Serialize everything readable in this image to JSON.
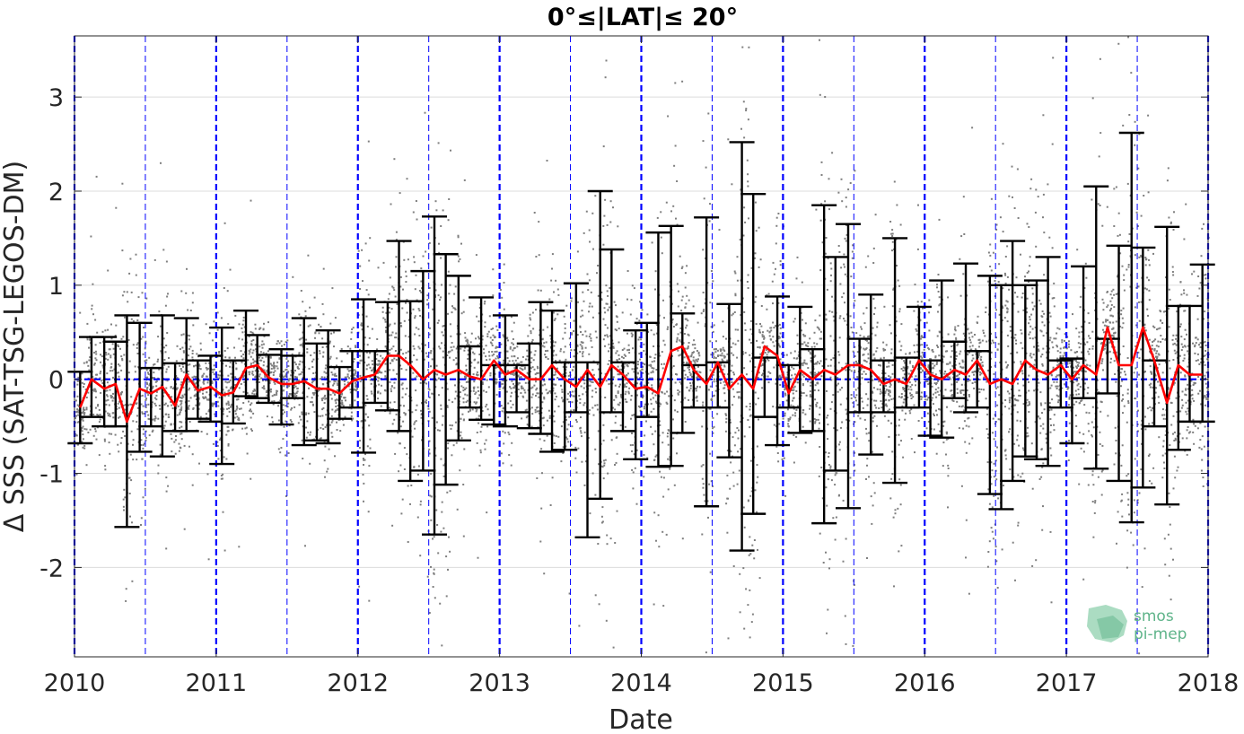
{
  "chart_data": {
    "type": "scatter",
    "title": "0°≤|LAT|≤ 20°",
    "xlabel": "Date",
    "ylabel": "Δ SSS (SAT-TSG-LEGOS-DM)",
    "xlim": [
      2010.0,
      2018.0
    ],
    "ylim": [
      -2.95,
      3.65
    ],
    "x_ticks": [
      2010,
      2011,
      2012,
      2013,
      2014,
      2015,
      2016,
      2017,
      2018
    ],
    "x_tick_labels": [
      "2010",
      "2011",
      "2012",
      "2013",
      "2014",
      "2015",
      "2016",
      "2017",
      "2018"
    ],
    "y_ticks": [
      -2,
      -1,
      0,
      1,
      2,
      3
    ],
    "y_tick_labels": [
      "-2",
      "-1",
      "0",
      "1",
      "2",
      "3"
    ],
    "grid": "horizontal",
    "year_lines": [
      2010,
      2011,
      2012,
      2013,
      2014,
      2015,
      2016,
      2017,
      2018
    ],
    "half_year_lines": [
      2010.5,
      2011.5,
      2012.5,
      2013.5,
      2014.5,
      2015.5,
      2016.5,
      2017.5
    ],
    "zero_line": 0,
    "colors": {
      "scatter": "#7f7f7f",
      "mean_line": "#ff0000",
      "error_bars": "#000000",
      "year_lines": "#0000ff",
      "zero_line": "#0000ff",
      "grid": "#dcdcdc"
    },
    "series": [
      {
        "type": "line",
        "x": [
          2010.04,
          2010.12,
          2010.21,
          2010.29,
          2010.37,
          2010.46,
          2010.54,
          2010.62,
          2010.71,
          2010.79,
          2010.87,
          2010.96,
          2011.04,
          2011.12,
          2011.21,
          2011.29,
          2011.37,
          2011.46,
          2011.54,
          2011.62,
          2011.71,
          2011.79,
          2011.87,
          2011.96,
          2012.04,
          2012.12,
          2012.21,
          2012.29,
          2012.37,
          2012.46,
          2012.54,
          2012.62,
          2012.71,
          2012.79,
          2012.87,
          2012.96,
          2013.04,
          2013.12,
          2013.21,
          2013.29,
          2013.37,
          2013.46,
          2013.54,
          2013.62,
          2013.71,
          2013.79,
          2013.87,
          2013.96,
          2014.04,
          2014.12,
          2014.21,
          2014.29,
          2014.37,
          2014.46,
          2014.54,
          2014.62,
          2014.71,
          2014.79,
          2014.87,
          2014.96,
          2015.04,
          2015.12,
          2015.21,
          2015.29,
          2015.37,
          2015.46,
          2015.54,
          2015.62,
          2015.71,
          2015.79,
          2015.87,
          2015.96,
          2016.04,
          2016.12,
          2016.21,
          2016.29,
          2016.37,
          2016.46,
          2016.54,
          2016.62,
          2016.71,
          2016.79,
          2016.87,
          2016.96,
          2017.04,
          2017.12,
          2017.21,
          2017.29,
          2017.37,
          2017.46,
          2017.54,
          2017.62,
          2017.71,
          2017.79,
          2017.87,
          2017.96
        ],
        "y": [
          -0.3,
          0.0,
          -0.1,
          -0.05,
          -0.45,
          -0.1,
          -0.15,
          -0.08,
          -0.28,
          0.05,
          -0.12,
          -0.08,
          -0.17,
          -0.14,
          0.12,
          0.15,
          0.02,
          -0.05,
          -0.05,
          -0.02,
          -0.1,
          -0.1,
          -0.15,
          -0.02,
          0.02,
          0.05,
          0.25,
          0.25,
          0.15,
          0.0,
          0.1,
          0.05,
          0.1,
          0.03,
          0.0,
          0.2,
          0.05,
          0.1,
          0.0,
          0.0,
          0.15,
          0.0,
          -0.08,
          0.1,
          -0.08,
          0.15,
          0.05,
          -0.1,
          -0.08,
          -0.15,
          0.3,
          0.35,
          0.1,
          -0.05,
          0.18,
          -0.1,
          0.05,
          -0.1,
          0.35,
          0.25,
          -0.15,
          0.1,
          0.0,
          0.1,
          0.05,
          0.15,
          0.15,
          0.1,
          -0.05,
          0.0,
          -0.05,
          0.2,
          0.05,
          0.0,
          0.1,
          0.05,
          0.2,
          -0.05,
          0.0,
          -0.05,
          0.2,
          0.1,
          0.05,
          0.15,
          0.0,
          0.15,
          0.05,
          0.55,
          0.15,
          0.15,
          0.55,
          0.2,
          -0.25,
          0.15,
          0.05,
          0.05
        ]
      },
      {
        "type": "errorbar",
        "x": [
          2010.04,
          2010.12,
          2010.21,
          2010.29,
          2010.37,
          2010.46,
          2010.54,
          2010.62,
          2010.71,
          2010.79,
          2010.87,
          2010.96,
          2011.04,
          2011.12,
          2011.21,
          2011.29,
          2011.37,
          2011.46,
          2011.54,
          2011.62,
          2011.71,
          2011.79,
          2011.87,
          2011.96,
          2012.04,
          2012.12,
          2012.21,
          2012.29,
          2012.37,
          2012.46,
          2012.54,
          2012.62,
          2012.71,
          2012.79,
          2012.87,
          2012.96,
          2013.04,
          2013.12,
          2013.21,
          2013.29,
          2013.37,
          2013.46,
          2013.54,
          2013.62,
          2013.71,
          2013.79,
          2013.87,
          2013.96,
          2014.04,
          2014.12,
          2014.21,
          2014.29,
          2014.37,
          2014.46,
          2014.54,
          2014.62,
          2014.71,
          2014.79,
          2014.87,
          2014.96,
          2015.04,
          2015.12,
          2015.21,
          2015.29,
          2015.37,
          2015.46,
          2015.54,
          2015.62,
          2015.71,
          2015.79,
          2015.87,
          2015.96,
          2016.04,
          2016.12,
          2016.21,
          2016.29,
          2016.37,
          2016.46,
          2016.54,
          2016.62,
          2016.71,
          2016.79,
          2016.87,
          2016.96,
          2017.04,
          2017.12,
          2017.21,
          2017.29,
          2017.37,
          2017.46,
          2017.54,
          2017.62,
          2017.71,
          2017.79,
          2017.87,
          2017.96
        ],
        "upper": [
          0.08,
          0.45,
          0.45,
          0.4,
          0.68,
          0.6,
          0.12,
          0.68,
          0.17,
          0.65,
          0.2,
          0.25,
          0.55,
          0.2,
          0.73,
          0.47,
          0.26,
          0.32,
          0.25,
          0.65,
          0.38,
          0.52,
          0.13,
          0.3,
          0.85,
          0.3,
          0.82,
          1.47,
          0.83,
          1.15,
          1.73,
          1.33,
          1.1,
          0.35,
          0.87,
          0.15,
          0.68,
          0.15,
          0.38,
          0.82,
          0.73,
          0.18,
          1.02,
          0.18,
          2.0,
          1.38,
          0.18,
          0.52,
          0.6,
          1.56,
          1.63,
          0.7,
          0.15,
          1.72,
          0.18,
          0.8,
          2.52,
          1.97,
          0.23,
          0.88,
          0.15,
          0.77,
          0.32,
          1.85,
          1.3,
          1.65,
          0.43,
          0.9,
          0.2,
          1.5,
          0.23,
          0.77,
          0.2,
          1.05,
          0.4,
          1.23,
          0.3,
          1.1,
          1.0,
          1.47,
          1.0,
          1.05,
          1.3,
          0.2,
          0.22,
          1.2,
          2.05,
          0.43,
          1.42,
          2.62,
          1.4,
          0.2,
          1.62,
          0.78,
          0.78,
          1.22
        ],
        "lower": [
          -0.68,
          -0.4,
          -0.5,
          -0.5,
          -1.57,
          -0.77,
          -0.5,
          -0.82,
          -0.55,
          -0.55,
          -0.42,
          -0.45,
          -0.9,
          -0.47,
          -0.18,
          -0.2,
          -0.25,
          -0.48,
          -0.2,
          -0.7,
          -0.65,
          -0.68,
          -0.42,
          -0.3,
          -0.78,
          -0.25,
          -0.33,
          -0.55,
          -1.08,
          -0.97,
          -1.65,
          -1.12,
          -0.65,
          -0.3,
          -0.43,
          -0.48,
          -0.5,
          -0.35,
          -0.52,
          -0.58,
          -0.77,
          -0.75,
          -0.35,
          -1.68,
          -1.27,
          -0.35,
          -0.55,
          -0.85,
          -0.4,
          -0.93,
          -0.92,
          -0.57,
          -0.3,
          -1.35,
          -0.3,
          -0.83,
          -1.82,
          -1.43,
          -0.4,
          -0.7,
          -0.3,
          -0.57,
          -0.55,
          -1.53,
          -0.97,
          -1.37,
          -0.35,
          -0.8,
          -0.35,
          -1.1,
          -0.3,
          -0.3,
          -0.6,
          -0.62,
          -0.2,
          -0.35,
          -0.3,
          -1.22,
          -1.38,
          -1.08,
          -0.82,
          -0.85,
          -0.92,
          -0.3,
          -0.68,
          -0.2,
          -0.95,
          -0.15,
          -1.08,
          -1.52,
          -1.15,
          -0.5,
          -1.33,
          -0.75,
          -0.45,
          -0.45
        ]
      }
    ]
  },
  "logo": {
    "line1": "smos",
    "line2": "pi-mep"
  }
}
